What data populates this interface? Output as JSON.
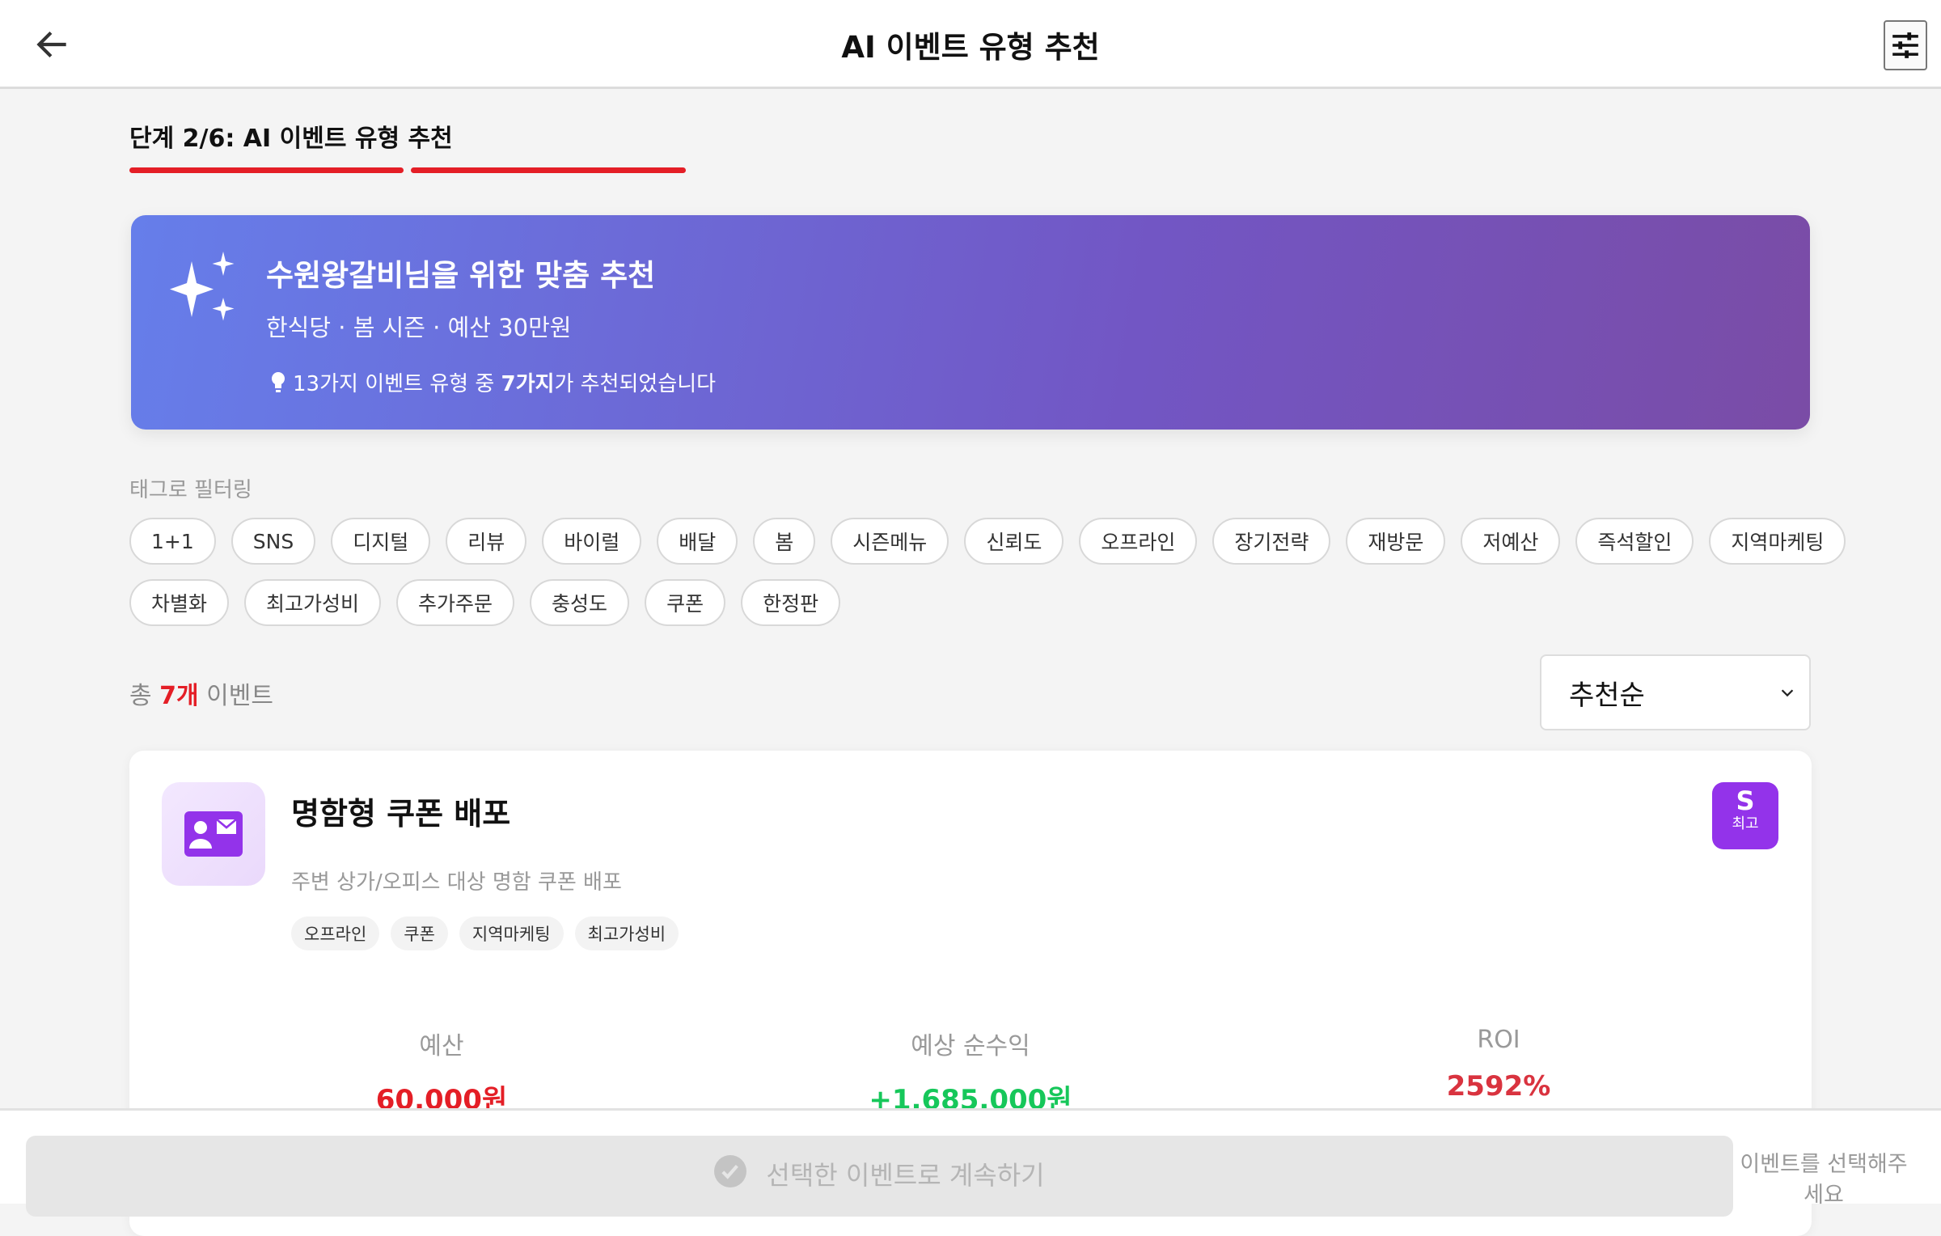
{
  "header": {
    "title": "AI 이벤트 유형 추천",
    "back_icon": "arrow-left-icon",
    "settings_icon": "sliders-icon"
  },
  "step": {
    "label": "단계 2/6: AI 이벤트 유형 추천",
    "current": 2,
    "total": 6
  },
  "banner": {
    "title": "수원왕갈비님을 위한 맞춤 추천",
    "subtitle": "한식당 · 봄 시즌 · 예산 30만원",
    "tip_prefix": "13가지 이벤트 유형 중 ",
    "tip_bold": "7가지",
    "tip_suffix": "가 추천되었습니다",
    "icon": "sparkles-icon"
  },
  "filter": {
    "label": "태그로 필터링",
    "row1": [
      "1+1",
      "SNS",
      "디지털",
      "리뷰",
      "바이럴",
      "배달",
      "봄",
      "시즌메뉴",
      "신뢰도",
      "오프라인",
      "장기전략",
      "재방문",
      "저예산",
      "즉석할인",
      "지역마케팅"
    ],
    "row2": [
      "차별화",
      "최고가성비",
      "추가주문",
      "충성도",
      "쿠폰",
      "한정판"
    ]
  },
  "summary": {
    "prefix": "총 ",
    "count": "7개",
    "suffix": " 이벤트"
  },
  "sort": {
    "selected": "추천순"
  },
  "card": {
    "title": "명함형 쿠폰 배포",
    "description": "주변 상가/오피스 대상 명함 쿠폰 배포",
    "tags": [
      "오프라인",
      "쿠폰",
      "지역마케팅",
      "최고가성비"
    ],
    "badge_grade": "S",
    "badge_label": "최고",
    "icon": "id-card-icon",
    "stats": [
      {
        "label": "예산",
        "value": "60,000원",
        "color": "#e41e26"
      },
      {
        "label": "예상 순수익",
        "value": "+1,685,000원",
        "color": "#16c75a"
      },
      {
        "label": "ROI",
        "value": "2592%",
        "color": "#d9333f"
      }
    ]
  },
  "footer": {
    "cta": "선택한 이벤트로 계속하기",
    "hint": "이벤트를 선택해주세요"
  },
  "colors": {
    "accent": "#e41e26",
    "brand_purple": "#9333ea"
  }
}
